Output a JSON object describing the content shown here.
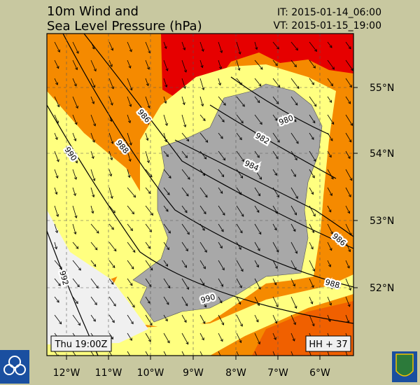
{
  "header": {
    "title_line1": "10m Wind and",
    "title_line2": "Sea Level Pressure (hPa)",
    "init_time": "IT: 2015-01-14_06:00",
    "valid_time": "VT: 2015-01-15_19:00"
  },
  "map": {
    "longitude_labels": [
      "12°W",
      "11°W",
      "10°W",
      "9°W",
      "8°W",
      "7°W",
      "6°W"
    ],
    "latitude_labels": [
      "55°N",
      "54°N",
      "53°N",
      "52°N"
    ],
    "isobar_labels": [
      986,
      988,
      990,
      992,
      980,
      982,
      984,
      986,
      988,
      990
    ]
  },
  "footer": {
    "time_box": "Thu 19:00Z",
    "forecast_hour": "HH + 37"
  }
}
